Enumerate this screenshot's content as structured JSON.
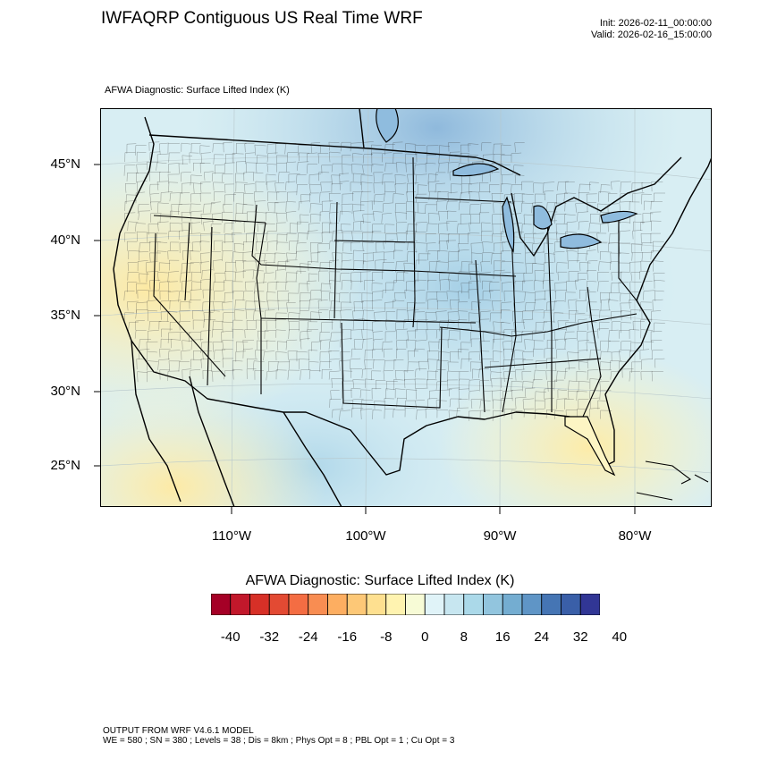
{
  "title": "IWFAQRP Contiguous US Real Time WRF",
  "init": "Init: 2026-02-11_00:00:00",
  "valid": "Valid: 2026-02-16_15:00:00",
  "map_subtitle": "AFWA Diagnostic: Surface Lifted Index   (K)",
  "lat_labels": [
    "45°N",
    "40°N",
    "35°N",
    "30°N",
    "25°N"
  ],
  "lon_labels": [
    "110°W",
    "100°W",
    "90°W",
    "80°W"
  ],
  "colorbar": {
    "title": "AFWA Diagnostic: Surface Lifted Index  (K)",
    "tick_labels": [
      "-40",
      "-32",
      "-24",
      "-16",
      "-8",
      "0",
      "8",
      "16",
      "24",
      "32",
      "40"
    ],
    "colors": [
      "#a50026",
      "#c2182b",
      "#d73027",
      "#e34a33",
      "#f46d43",
      "#f88d52",
      "#fdae61",
      "#fdc877",
      "#fee090",
      "#fff3b0",
      "#f7fbd6",
      "#e0f3f8",
      "#c7e6f0",
      "#abd9e9",
      "#92c5de",
      "#74add1",
      "#5f95c6",
      "#4575b4",
      "#3a5fa8",
      "#313695"
    ]
  },
  "footer": {
    "line1": "OUTPUT FROM WRF V4.6.1 MODEL",
    "line2": "WE = 580 ; SN = 380 ; Levels = 38 ; Dis = 8km ; Phys Opt = 8 ; PBL Opt = 1 ; Cu Opt = 3"
  }
}
